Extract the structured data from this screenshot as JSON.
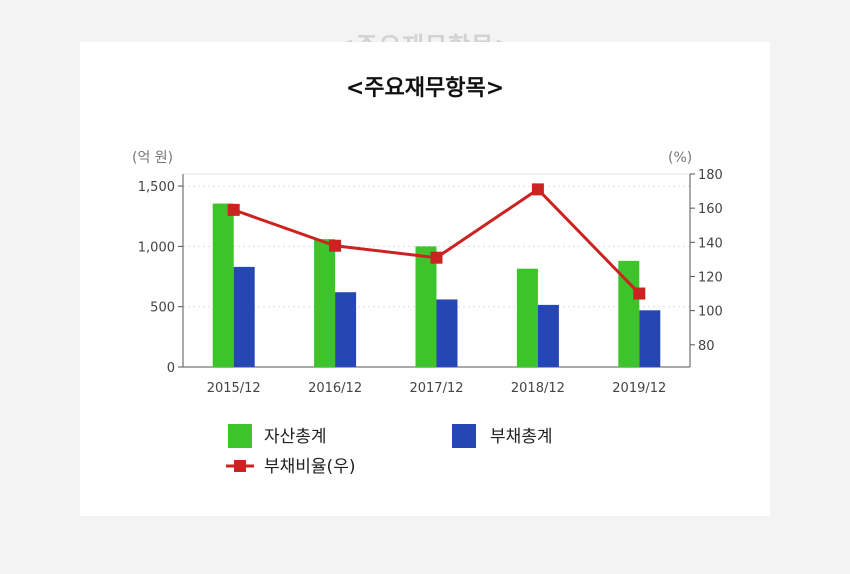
{
  "page": {
    "ghost_title": "<주요재무항목>",
    "title": "<주요재무항목>"
  },
  "chart_data": {
    "type": "bar",
    "title": "<주요재무항목>",
    "categories": [
      "2015/12",
      "2016/12",
      "2017/12",
      "2018/12",
      "2019/12"
    ],
    "left_axis": {
      "unit": "(억 원)",
      "ylim": [
        0,
        1600
      ],
      "ticks": [
        0,
        500,
        1000,
        1500
      ],
      "tick_labels": [
        "0",
        "500",
        "1,000",
        "1,500"
      ]
    },
    "right_axis": {
      "unit": "(%)",
      "ylim": [
        67,
        180
      ],
      "ticks": [
        80,
        100,
        120,
        140,
        160,
        180
      ],
      "tick_labels": [
        "80",
        "100",
        "120",
        "140",
        "160",
        "180"
      ]
    },
    "series": [
      {
        "name": "자산총계",
        "kind": "bar",
        "axis": "left",
        "color": "#3cc42a",
        "values": [
          1355,
          1060,
          1000,
          815,
          880
        ]
      },
      {
        "name": "부채총계",
        "kind": "bar",
        "axis": "left",
        "color": "#2646b4",
        "values": [
          830,
          620,
          560,
          515,
          470
        ]
      },
      {
        "name": "부채비율(우)",
        "kind": "line",
        "axis": "right",
        "color": "#cc2222",
        "values": [
          159,
          138,
          131,
          171,
          110
        ]
      }
    ],
    "grid": true,
    "legend_position": "bottom-left"
  }
}
